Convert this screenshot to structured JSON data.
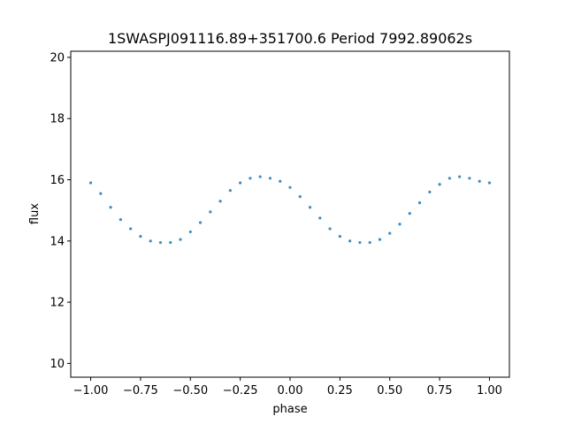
{
  "chart_data": {
    "type": "scatter",
    "title": "1SWASPJ091116.89+351700.6 Period 7992.89062s",
    "xlabel": "phase",
    "ylabel": "flux",
    "xlim": [
      -1.1,
      1.1
    ],
    "ylim": [
      9.55,
      20.2
    ],
    "x_ticks": [
      -1.0,
      -0.75,
      -0.5,
      -0.25,
      0.0,
      0.25,
      0.5,
      0.75,
      1.0
    ],
    "x_tick_labels": [
      "−1.00",
      "−0.75",
      "−0.50",
      "−0.25",
      "0.00",
      "0.25",
      "0.50",
      "0.75",
      "1.00"
    ],
    "y_ticks": [
      10,
      12,
      14,
      16,
      18,
      20
    ],
    "y_tick_labels": [
      "10",
      "12",
      "14",
      "16",
      "18",
      "20"
    ],
    "grid": false,
    "legend": "none",
    "marker_color": "#1f77b4",
    "series": [
      {
        "x": [
          -1.0,
          -0.95,
          -0.9,
          -0.85,
          -0.8,
          -0.75,
          -0.7,
          -0.65,
          -0.6,
          -0.55,
          -0.5,
          -0.45,
          -0.4,
          -0.35,
          -0.3,
          -0.25,
          -0.2,
          -0.15,
          -0.1,
          -0.05,
          0.0,
          0.05,
          0.1,
          0.15,
          0.2,
          0.25,
          0.3,
          0.35,
          0.4,
          0.45,
          0.5,
          0.55,
          0.6,
          0.65,
          0.7,
          0.75,
          0.8,
          0.85,
          0.9,
          0.95,
          1.0
        ],
        "y": [
          15.9,
          15.55,
          15.1,
          14.7,
          14.4,
          14.15,
          14.0,
          13.95,
          13.95,
          14.05,
          14.3,
          14.6,
          14.95,
          15.3,
          15.65,
          15.9,
          16.05,
          16.1,
          16.05,
          15.95,
          15.75,
          15.45,
          15.1,
          14.75,
          14.4,
          14.15,
          14.0,
          13.95,
          13.95,
          14.05,
          14.25,
          14.55,
          14.9,
          15.25,
          15.6,
          15.85,
          16.05,
          16.1,
          16.05,
          15.95,
          15.9
        ]
      }
    ]
  }
}
